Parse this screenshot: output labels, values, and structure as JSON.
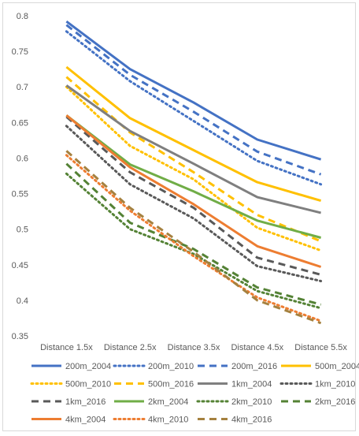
{
  "chart_data": {
    "type": "line",
    "title": "",
    "xlabel": "",
    "ylabel": "",
    "categories": [
      "Distance 1.5x",
      "Distance 2.5x",
      "Distance 3.5x",
      "Distance 4.5x",
      "Distance 5.5x"
    ],
    "ylim": [
      0.35,
      0.8
    ],
    "yticks": [
      "0.35",
      "0.4",
      "0.45",
      "0.5",
      "0.55",
      "0.6",
      "0.65",
      "0.7",
      "0.75",
      "0.8"
    ],
    "ytick_values": [
      0.35,
      0.4,
      0.45,
      0.5,
      0.55,
      0.6,
      0.65,
      0.7,
      0.75,
      0.8
    ],
    "grid": false,
    "legend_position": "bottom",
    "series": [
      {
        "name": "200m_2004",
        "values": [
          0.792,
          0.725,
          0.678,
          0.626,
          0.598
        ],
        "color": "#4472C4",
        "dash": "solid"
      },
      {
        "name": "200m_2010",
        "values": [
          0.778,
          0.708,
          0.652,
          0.596,
          0.563
        ],
        "color": "#4472C4",
        "dash": "dot"
      },
      {
        "name": "200m_2016",
        "values": [
          0.787,
          0.717,
          0.665,
          0.609,
          0.577
        ],
        "color": "#4472C4",
        "dash": "dash"
      },
      {
        "name": "500m_2004",
        "values": [
          0.728,
          0.656,
          0.611,
          0.566,
          0.54
        ],
        "color": "#FFC000",
        "dash": "solid"
      },
      {
        "name": "500m_2010",
        "values": [
          0.7,
          0.617,
          0.57,
          0.502,
          0.47
        ],
        "color": "#FFC000",
        "dash": "dot"
      },
      {
        "name": "500m_2016",
        "values": [
          0.714,
          0.636,
          0.58,
          0.52,
          0.483
        ],
        "color": "#FFC000",
        "dash": "dash"
      },
      {
        "name": "1km_2004",
        "values": [
          0.702,
          0.638,
          0.592,
          0.545,
          0.523
        ],
        "color": "#7F7F7F",
        "dash": "solid"
      },
      {
        "name": "1km_2010",
        "values": [
          0.645,
          0.563,
          0.515,
          0.448,
          0.427
        ],
        "color": "#595959",
        "dash": "dot"
      },
      {
        "name": "1km_2016",
        "values": [
          0.658,
          0.58,
          0.53,
          0.46,
          0.436
        ],
        "color": "#595959",
        "dash": "dash"
      },
      {
        "name": "2km_2004",
        "values": [
          0.66,
          0.591,
          0.553,
          0.512,
          0.488
        ],
        "color": "#70AD47",
        "dash": "solid"
      },
      {
        "name": "2km_2010",
        "values": [
          0.578,
          0.5,
          0.465,
          0.413,
          0.389
        ],
        "color": "#548235",
        "dash": "dot"
      },
      {
        "name": "2km_2016",
        "values": [
          0.592,
          0.509,
          0.472,
          0.418,
          0.394
        ],
        "color": "#548235",
        "dash": "dash"
      },
      {
        "name": "4km_2004",
        "values": [
          0.66,
          0.587,
          0.535,
          0.476,
          0.447
        ],
        "color": "#ED7D31",
        "dash": "solid"
      },
      {
        "name": "4km_2010",
        "values": [
          0.604,
          0.526,
          0.462,
          0.404,
          0.371
        ],
        "color": "#ED7D31",
        "dash": "dot"
      },
      {
        "name": "4km_2016",
        "values": [
          0.61,
          0.53,
          0.468,
          0.4,
          0.368
        ],
        "color": "#A5813F",
        "dash": "dash"
      }
    ]
  }
}
